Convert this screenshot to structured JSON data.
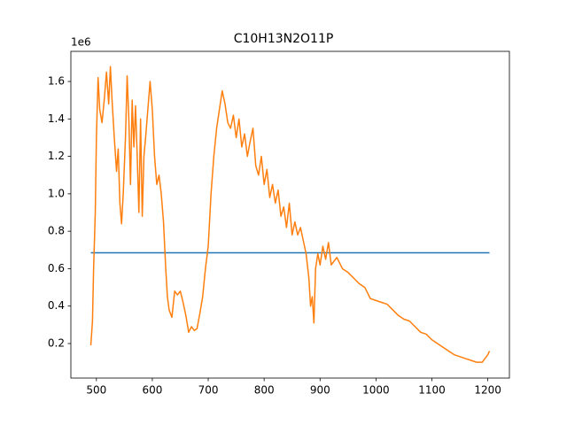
{
  "chart_data": {
    "type": "line",
    "title": "C10H13N2O11P",
    "y_offset_label": "1e6",
    "xlim": [
      454.35,
      1238.65
    ],
    "ylim": [
      0.0155,
      1.761
    ],
    "xticks": [
      500,
      600,
      700,
      800,
      900,
      1000,
      1100,
      1200
    ],
    "yticks": [
      0.2,
      0.4,
      0.6,
      0.8,
      {
        "value": 1,
        "label": "1.0"
      },
      1.2,
      1.4,
      1.6
    ],
    "grid": false,
    "series": [
      {
        "color": "#1f77b4",
        "x": [
          490,
          1203
        ],
        "values": [
          0.685,
          0.685
        ]
      },
      {
        "color": "#ff7f0e",
        "x": [
          490,
          493,
          495,
          498,
          500,
          503,
          506,
          510,
          514,
          518,
          522,
          525,
          528,
          532,
          536,
          539,
          542,
          545,
          548,
          552,
          555,
          558,
          561,
          564,
          567,
          570,
          573,
          576,
          579,
          582,
          585,
          588,
          592,
          596,
          600,
          604,
          608,
          612,
          616,
          620,
          624,
          627,
          630,
          635,
          640,
          645,
          650,
          655,
          660,
          665,
          670,
          675,
          680,
          685,
          690,
          695,
          700,
          705,
          710,
          715,
          720,
          725,
          730,
          735,
          740,
          745,
          750,
          755,
          760,
          765,
          770,
          775,
          780,
          785,
          790,
          795,
          800,
          805,
          810,
          815,
          820,
          825,
          830,
          835,
          840,
          845,
          850,
          855,
          860,
          865,
          870,
          875,
          880,
          883,
          886,
          889,
          892,
          896,
          900,
          905,
          910,
          915,
          920,
          930,
          940,
          950,
          960,
          970,
          980,
          990,
          1000,
          1010,
          1020,
          1030,
          1040,
          1050,
          1060,
          1070,
          1080,
          1090,
          1100,
          1110,
          1120,
          1130,
          1140,
          1150,
          1160,
          1170,
          1180,
          1190,
          1195,
          1200,
          1203
        ],
        "values": [
          0.19,
          0.32,
          0.6,
          0.9,
          1.3,
          1.62,
          1.45,
          1.38,
          1.5,
          1.65,
          1.48,
          1.68,
          1.5,
          1.3,
          1.12,
          1.24,
          0.95,
          0.84,
          1.0,
          1.3,
          1.63,
          1.4,
          1.05,
          1.5,
          1.25,
          1.47,
          1.2,
          0.9,
          1.4,
          0.88,
          1.2,
          1.3,
          1.45,
          1.6,
          1.45,
          1.2,
          1.05,
          1.1,
          1.0,
          0.85,
          0.6,
          0.45,
          0.38,
          0.34,
          0.48,
          0.46,
          0.48,
          0.42,
          0.35,
          0.26,
          0.29,
          0.27,
          0.28,
          0.36,
          0.45,
          0.6,
          0.72,
          1.0,
          1.2,
          1.35,
          1.45,
          1.55,
          1.48,
          1.38,
          1.35,
          1.42,
          1.3,
          1.4,
          1.25,
          1.32,
          1.2,
          1.28,
          1.35,
          1.15,
          1.1,
          1.2,
          1.05,
          1.13,
          0.98,
          1.05,
          0.95,
          1.02,
          0.88,
          0.93,
          0.82,
          0.95,
          0.78,
          0.85,
          0.78,
          0.82,
          0.75,
          0.68,
          0.55,
          0.4,
          0.45,
          0.31,
          0.6,
          0.68,
          0.62,
          0.72,
          0.65,
          0.74,
          0.62,
          0.66,
          0.6,
          0.58,
          0.55,
          0.52,
          0.5,
          0.44,
          0.43,
          0.42,
          0.41,
          0.38,
          0.35,
          0.33,
          0.32,
          0.29,
          0.26,
          0.25,
          0.22,
          0.2,
          0.18,
          0.16,
          0.14,
          0.13,
          0.12,
          0.11,
          0.1,
          0.1,
          0.12,
          0.14,
          0.16
        ]
      }
    ]
  }
}
